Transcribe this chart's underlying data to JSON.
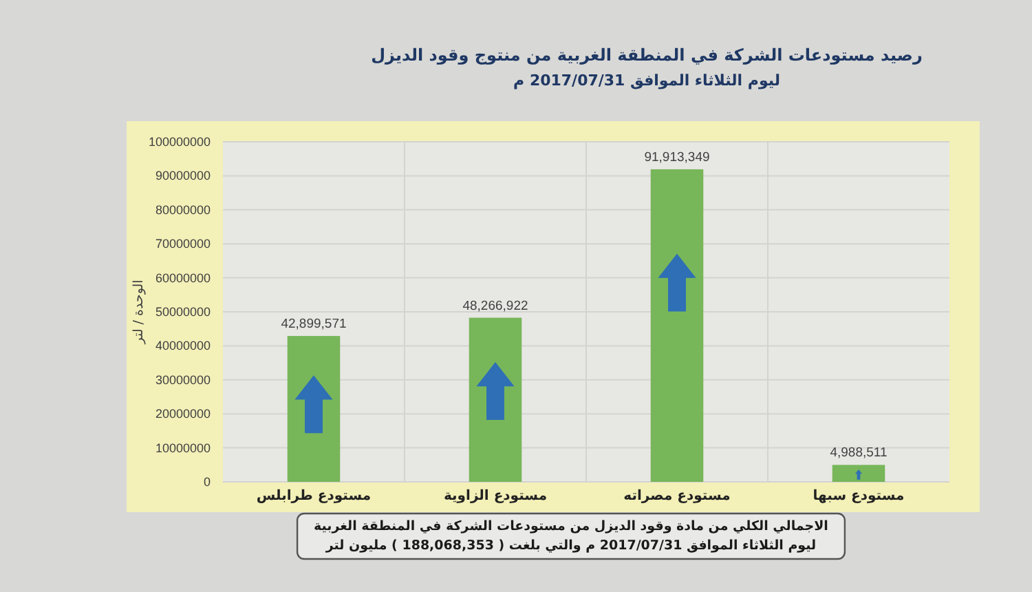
{
  "chart_data": {
    "type": "bar",
    "title": "رصيد مستودعات الشركة في المنطقة الغربية من منتوج وقود الديزل",
    "subtitle": "ليوم الثلاثاء الموافق 2017/07/31 م",
    "ylabel": "الوحدة / لتر",
    "annotations": [
      "الاجمالي الكلي من مادة وقود الديزل من مستودعات الشركة في المنطقة الغربية\nليوم الثلاثاء الموافق 2017/07/31 م والتي بلغت ( 188,068,353 ) مليون لتر"
    ],
    "categories": [
      "مستودع طرابلس",
      "مستودع الزاوية",
      "مستودع مصراته",
      "مستودع سبها"
    ],
    "values": [
      42899571,
      48266922,
      91913349,
      4988511
    ],
    "value_labels": [
      "42,899,571",
      "48,266,922",
      "91,913,349",
      "4,988,511"
    ],
    "color": "#78b65a",
    "ylim": [
      0,
      100000000
    ],
    "yticks": [
      0,
      10000000,
      20000000,
      30000000,
      40000000,
      50000000,
      60000000,
      70000000,
      80000000,
      90000000,
      100000000
    ],
    "grid": true
  }
}
